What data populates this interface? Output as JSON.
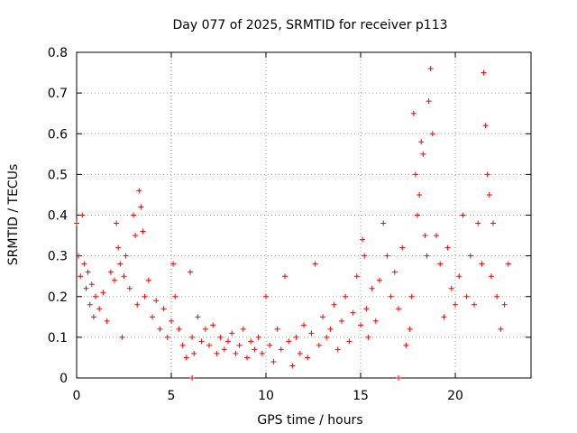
{
  "chart_data": {
    "type": "scatter",
    "title": "Day 077 of 2025, SRMTID for receiver p113",
    "xlabel": "GPS time / hours",
    "ylabel": "SRMTID / TECUs",
    "xlim": [
      0,
      24
    ],
    "ylim": [
      0,
      0.8
    ],
    "x_ticks": [
      0,
      5,
      10,
      15,
      20
    ],
    "y_ticks": [
      0,
      0.1,
      0.2,
      0.3,
      0.4,
      0.5,
      0.6,
      0.7,
      0.8
    ],
    "x_tick_labels": [
      "0",
      "5",
      "10",
      "15",
      "20"
    ],
    "y_tick_labels": [
      "0",
      "0.1",
      "0.2",
      "0.3",
      "0.4",
      "0.5",
      "0.6",
      "0.7",
      "0.8"
    ],
    "grid": true,
    "marker": "+",
    "marker_color": "#ff0000",
    "series": [
      {
        "name": "SRMTID",
        "x": [
          0.0,
          0.1,
          0.2,
          0.3,
          0.4,
          0.5,
          0.6,
          0.7,
          0.8,
          0.9,
          1.0,
          1.2,
          1.4,
          1.6,
          1.8,
          2.0,
          2.1,
          2.2,
          2.3,
          2.4,
          2.5,
          2.6,
          2.8,
          3.0,
          3.1,
          3.2,
          3.3,
          3.4,
          3.5,
          3.6,
          3.8,
          4.0,
          4.2,
          4.4,
          4.6,
          4.8,
          5.0,
          5.1,
          5.2,
          5.4,
          5.6,
          5.8,
          6.0,
          6.1,
          6.2,
          6.4,
          6.6,
          6.8,
          7.0,
          7.2,
          7.4,
          7.6,
          7.8,
          8.0,
          8.2,
          8.4,
          8.6,
          8.8,
          9.0,
          9.2,
          9.4,
          9.6,
          9.8,
          10.0,
          10.2,
          10.4,
          10.6,
          10.8,
          11.0,
          11.2,
          11.4,
          11.6,
          11.8,
          12.0,
          12.2,
          12.4,
          12.6,
          12.8,
          13.0,
          13.2,
          13.4,
          13.6,
          13.8,
          14.0,
          14.2,
          14.4,
          14.6,
          14.8,
          15.0,
          15.1,
          15.2,
          15.3,
          15.4,
          15.6,
          15.8,
          16.0,
          16.2,
          16.4,
          16.6,
          16.8,
          17.0,
          17.2,
          17.4,
          17.6,
          17.7,
          17.8,
          17.9,
          18.0,
          18.1,
          18.2,
          18.3,
          18.4,
          18.5,
          18.6,
          18.7,
          18.8,
          19.0,
          19.2,
          19.4,
          19.6,
          19.8,
          20.0,
          20.2,
          20.4,
          20.6,
          20.8,
          21.0,
          21.2,
          21.4,
          21.5,
          21.6,
          21.7,
          21.8,
          21.9,
          22.0,
          22.2,
          22.4,
          22.6,
          22.8
        ],
        "y": [
          0.38,
          0.3,
          0.25,
          0.4,
          0.28,
          0.22,
          0.26,
          0.18,
          0.23,
          0.15,
          0.2,
          0.17,
          0.21,
          0.14,
          0.26,
          0.24,
          0.38,
          0.32,
          0.28,
          0.1,
          0.25,
          0.3,
          0.22,
          0.4,
          0.35,
          0.18,
          0.46,
          0.42,
          0.36,
          0.2,
          0.24,
          0.15,
          0.19,
          0.12,
          0.17,
          0.1,
          0.14,
          0.28,
          0.2,
          0.12,
          0.08,
          0.05,
          0.26,
          0.1,
          0.06,
          0.15,
          0.09,
          0.12,
          0.08,
          0.13,
          0.06,
          0.1,
          0.07,
          0.09,
          0.11,
          0.06,
          0.08,
          0.12,
          0.05,
          0.09,
          0.07,
          0.1,
          0.06,
          0.2,
          0.08,
          0.04,
          0.12,
          0.07,
          0.25,
          0.09,
          0.03,
          0.1,
          0.06,
          0.13,
          0.05,
          0.11,
          0.28,
          0.08,
          0.15,
          0.1,
          0.12,
          0.18,
          0.07,
          0.14,
          0.2,
          0.09,
          0.16,
          0.25,
          0.13,
          0.34,
          0.3,
          0.17,
          0.1,
          0.22,
          0.14,
          0.24,
          0.38,
          0.3,
          0.2,
          0.26,
          0.17,
          0.32,
          0.08,
          0.12,
          0.2,
          0.65,
          0.5,
          0.4,
          0.45,
          0.58,
          0.55,
          0.35,
          0.3,
          0.68,
          0.76,
          0.6,
          0.35,
          0.28,
          0.15,
          0.32,
          0.22,
          0.18,
          0.25,
          0.4,
          0.2,
          0.3,
          0.18,
          0.38,
          0.28,
          0.75,
          0.62,
          0.5,
          0.45,
          0.25,
          0.38,
          0.2,
          0.12,
          0.18,
          0.28
        ]
      }
    ],
    "outliers": [
      {
        "x": 6.1,
        "y": 0.0
      },
      {
        "x": 17.0,
        "y": 0.0
      }
    ]
  }
}
